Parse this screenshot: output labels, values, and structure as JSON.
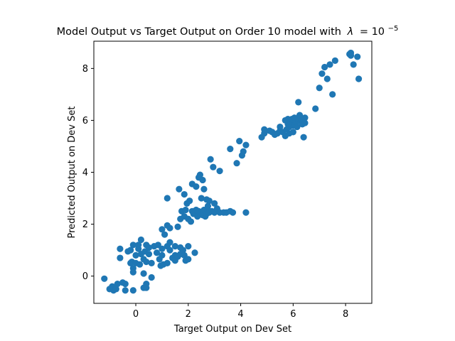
{
  "chart_data": {
    "type": "scatter",
    "title": "Model Output vs Target Output on Order 10 model with",
    "title_lambda_symbol": "λ",
    "title_lambda_value_base": "= 10",
    "title_lambda_exponent": "−5",
    "xlabel": "Target Output on Dev Set",
    "ylabel": "Predicted Output on Dev Set",
    "xlim": [
      -1.6,
      9.0
    ],
    "ylim": [
      -1.05,
      9.05
    ],
    "xticks": [
      0,
      2,
      4,
      6,
      8
    ],
    "yticks": [
      0,
      2,
      4,
      6,
      8
    ],
    "grid": false,
    "marker_color": "#1f77b4",
    "series": [
      {
        "points": [
          [
            -1.2,
            -0.1
          ],
          [
            -1.0,
            -0.5
          ],
          [
            -0.9,
            -0.4
          ],
          [
            -0.85,
            -0.55
          ],
          [
            -0.7,
            -0.3
          ],
          [
            -0.75,
            -0.5
          ],
          [
            -0.5,
            -0.25
          ],
          [
            -0.4,
            -0.3
          ],
          [
            -0.4,
            -0.55
          ],
          [
            -0.1,
            -0.55
          ],
          [
            -0.6,
            1.05
          ],
          [
            -0.6,
            0.7
          ],
          [
            -0.3,
            0.95
          ],
          [
            -0.2,
            1.0
          ],
          [
            -0.2,
            0.5
          ],
          [
            -0.1,
            0.3
          ],
          [
            -0.15,
            0.55
          ],
          [
            -0.1,
            1.2
          ],
          [
            -0.1,
            0.15
          ],
          [
            0.0,
            0.5
          ],
          [
            0.0,
            0.8
          ],
          [
            0.1,
            1.05
          ],
          [
            0.1,
            1.2
          ],
          [
            0.15,
            0.45
          ],
          [
            0.2,
            0.85
          ],
          [
            0.2,
            1.4
          ],
          [
            0.3,
            0.65
          ],
          [
            0.35,
            0.95
          ],
          [
            0.3,
            0.1
          ],
          [
            0.4,
            1.2
          ],
          [
            0.4,
            0.55
          ],
          [
            0.5,
            0.85
          ],
          [
            0.5,
            1.1
          ],
          [
            0.6,
            0.5
          ],
          [
            0.3,
            -0.45
          ],
          [
            0.4,
            -0.3
          ],
          [
            0.4,
            -0.45
          ],
          [
            0.6,
            -0.05
          ],
          [
            0.7,
            1.15
          ],
          [
            0.8,
            0.9
          ],
          [
            0.85,
            1.2
          ],
          [
            0.9,
            0.65
          ],
          [
            0.95,
            0.4
          ],
          [
            1.0,
            0.8
          ],
          [
            1.0,
            1.05
          ],
          [
            1.05,
            0.45
          ],
          [
            1.0,
            1.8
          ],
          [
            1.1,
            1.6
          ],
          [
            1.2,
            1.95
          ],
          [
            1.2,
            1.15
          ],
          [
            1.2,
            0.5
          ],
          [
            1.3,
            1.3
          ],
          [
            1.3,
            1.85
          ],
          [
            1.3,
            1.0
          ],
          [
            1.4,
            0.7
          ],
          [
            1.5,
            1.15
          ],
          [
            1.5,
            0.8
          ],
          [
            1.5,
            0.6
          ],
          [
            1.6,
            0.75
          ],
          [
            1.7,
            1.1
          ],
          [
            1.7,
            0.85
          ],
          [
            1.8,
            1.0
          ],
          [
            1.85,
            0.8
          ],
          [
            1.9,
            0.6
          ],
          [
            2.0,
            0.65
          ],
          [
            2.0,
            1.15
          ],
          [
            2.25,
            0.9
          ],
          [
            1.2,
            3.0
          ],
          [
            1.6,
            1.9
          ],
          [
            1.7,
            2.2
          ],
          [
            1.75,
            2.5
          ],
          [
            1.85,
            2.3
          ],
          [
            1.9,
            2.55
          ],
          [
            1.95,
            2.8
          ],
          [
            2.0,
            2.2
          ],
          [
            2.05,
            2.9
          ],
          [
            2.1,
            2.1
          ],
          [
            2.15,
            2.5
          ],
          [
            2.2,
            2.4
          ],
          [
            2.3,
            2.55
          ],
          [
            2.35,
            2.3
          ],
          [
            2.4,
            2.5
          ],
          [
            2.5,
            2.45
          ],
          [
            2.55,
            2.35
          ],
          [
            2.6,
            2.55
          ],
          [
            2.65,
            2.3
          ],
          [
            2.7,
            2.4
          ],
          [
            2.75,
            2.55
          ],
          [
            2.8,
            2.45
          ],
          [
            2.8,
            2.9
          ],
          [
            2.9,
            2.5
          ],
          [
            3.0,
            2.45
          ],
          [
            3.1,
            2.6
          ],
          [
            3.2,
            2.45
          ],
          [
            3.35,
            2.45
          ],
          [
            3.45,
            2.45
          ],
          [
            3.6,
            2.5
          ],
          [
            3.7,
            2.45
          ],
          [
            4.2,
            2.45
          ],
          [
            3.0,
            2.8
          ],
          [
            2.75,
            2.7
          ],
          [
            2.5,
            3.0
          ],
          [
            2.6,
            3.35
          ],
          [
            1.65,
            3.35
          ],
          [
            1.85,
            3.15
          ],
          [
            2.15,
            3.55
          ],
          [
            2.3,
            3.45
          ],
          [
            2.4,
            3.8
          ],
          [
            2.45,
            3.9
          ],
          [
            2.55,
            3.7
          ],
          [
            2.7,
            2.95
          ],
          [
            2.85,
            4.5
          ],
          [
            2.95,
            4.2
          ],
          [
            3.2,
            4.05
          ],
          [
            3.6,
            4.9
          ],
          [
            3.85,
            4.35
          ],
          [
            4.05,
            4.65
          ],
          [
            4.1,
            4.8
          ],
          [
            4.2,
            5.05
          ],
          [
            3.95,
            5.2
          ],
          [
            4.8,
            5.35
          ],
          [
            4.9,
            5.5
          ],
          [
            4.9,
            5.65
          ],
          [
            5.1,
            5.6
          ],
          [
            5.2,
            5.55
          ],
          [
            5.3,
            5.45
          ],
          [
            5.4,
            5.5
          ],
          [
            5.5,
            5.6
          ],
          [
            5.5,
            5.75
          ],
          [
            5.6,
            5.55
          ],
          [
            5.7,
            5.4
          ],
          [
            5.75,
            5.65
          ],
          [
            5.8,
            5.85
          ],
          [
            5.85,
            5.5
          ],
          [
            5.9,
            5.95
          ],
          [
            5.95,
            6.05
          ],
          [
            6.0,
            5.8
          ],
          [
            6.05,
            6.1
          ],
          [
            6.1,
            5.9
          ],
          [
            6.15,
            5.75
          ],
          [
            6.2,
            6.0
          ],
          [
            6.25,
            6.2
          ],
          [
            6.3,
            5.95
          ],
          [
            6.35,
            5.85
          ],
          [
            6.4,
            6.05
          ],
          [
            6.45,
            6.1
          ],
          [
            6.45,
            5.9
          ],
          [
            5.8,
            6.05
          ],
          [
            5.7,
            6.0
          ],
          [
            5.85,
            5.75
          ],
          [
            6.0,
            5.55
          ],
          [
            6.4,
            5.35
          ],
          [
            6.2,
            6.7
          ],
          [
            6.85,
            6.45
          ],
          [
            7.0,
            7.25
          ],
          [
            7.1,
            7.8
          ],
          [
            7.2,
            8.05
          ],
          [
            7.3,
            7.6
          ],
          [
            7.4,
            8.15
          ],
          [
            7.5,
            7.0
          ],
          [
            7.6,
            8.3
          ],
          [
            8.15,
            8.55
          ],
          [
            8.2,
            8.6
          ],
          [
            8.2,
            8.5
          ],
          [
            8.3,
            8.15
          ],
          [
            8.45,
            8.45
          ],
          [
            8.5,
            7.6
          ]
        ]
      }
    ]
  }
}
